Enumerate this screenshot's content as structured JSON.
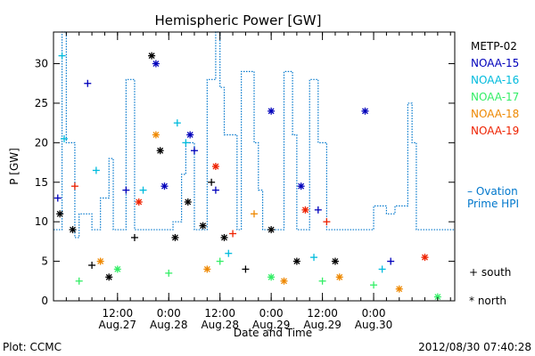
{
  "chart_data": {
    "type": "scatter",
    "title": "Hemispheric Power [GW]",
    "xlabel": "Date and Time",
    "ylabel": "P [GW]",
    "x_range": [
      "2012-08-26T21:00",
      "2012-08-30T19:00"
    ],
    "ylim": [
      0,
      34
    ],
    "y_ticks": [
      0,
      5,
      10,
      15,
      20,
      25,
      30
    ],
    "x_ticks": [
      {
        "t": "2012-08-27T12:00",
        "time": "12:00",
        "date": "Aug.27"
      },
      {
        "t": "2012-08-28T00:00",
        "time": "0:00",
        "date": "Aug.28"
      },
      {
        "t": "2012-08-28T12:00",
        "time": "12:00",
        "date": "Aug.28"
      },
      {
        "t": "2012-08-29T00:00",
        "time": "0:00",
        "date": "Aug.29"
      },
      {
        "t": "2012-08-29T12:00",
        "time": "12:00",
        "date": "Aug.29"
      },
      {
        "t": "2012-08-30T00:00",
        "time": "0:00",
        "date": "Aug.30"
      }
    ],
    "series": [
      {
        "name": "METP-02",
        "color": "#000000",
        "points": [
          {
            "t": "2012-08-26T22:30",
            "y": 11,
            "m": "north"
          },
          {
            "t": "2012-08-27T01:30",
            "y": 9,
            "m": "north"
          },
          {
            "t": "2012-08-27T06:00",
            "y": 4.5,
            "m": "south"
          },
          {
            "t": "2012-08-27T10:00",
            "y": 3,
            "m": "north"
          },
          {
            "t": "2012-08-27T16:00",
            "y": 8,
            "m": "south"
          },
          {
            "t": "2012-08-27T20:00",
            "y": 31,
            "m": "north"
          },
          {
            "t": "2012-08-27T22:00",
            "y": 19,
            "m": "north"
          },
          {
            "t": "2012-08-28T01:30",
            "y": 8,
            "m": "north"
          },
          {
            "t": "2012-08-28T04:30",
            "y": 12.5,
            "m": "north"
          },
          {
            "t": "2012-08-28T08:00",
            "y": 9.5,
            "m": "north"
          },
          {
            "t": "2012-08-28T10:00",
            "y": 15,
            "m": "south"
          },
          {
            "t": "2012-08-28T13:00",
            "y": 8,
            "m": "north"
          },
          {
            "t": "2012-08-28T18:00",
            "y": 4,
            "m": "south"
          },
          {
            "t": "2012-08-29T00:00",
            "y": 9,
            "m": "north"
          },
          {
            "t": "2012-08-29T06:00",
            "y": 5,
            "m": "north"
          },
          {
            "t": "2012-08-29T15:00",
            "y": 5,
            "m": "north"
          }
        ]
      },
      {
        "name": "NOAA-15",
        "color": "#0000bb",
        "points": [
          {
            "t": "2012-08-26T22:00",
            "y": 13,
            "m": "south"
          },
          {
            "t": "2012-08-27T05:00",
            "y": 27.5,
            "m": "south"
          },
          {
            "t": "2012-08-27T14:00",
            "y": 14,
            "m": "south"
          },
          {
            "t": "2012-08-27T21:00",
            "y": 30,
            "m": "north"
          },
          {
            "t": "2012-08-27T23:00",
            "y": 14.5,
            "m": "north"
          },
          {
            "t": "2012-08-28T05:00",
            "y": 21,
            "m": "north"
          },
          {
            "t": "2012-08-28T06:00",
            "y": 19,
            "m": "south"
          },
          {
            "t": "2012-08-28T11:00",
            "y": 14,
            "m": "south"
          },
          {
            "t": "2012-08-29T00:00",
            "y": 24,
            "m": "north"
          },
          {
            "t": "2012-08-29T07:00",
            "y": 14.5,
            "m": "north"
          },
          {
            "t": "2012-08-29T11:00",
            "y": 11.5,
            "m": "south"
          },
          {
            "t": "2012-08-29T22:00",
            "y": 24,
            "m": "north"
          },
          {
            "t": "2012-08-30T04:00",
            "y": 5,
            "m": "south"
          }
        ]
      },
      {
        "name": "NOAA-16",
        "color": "#00bbdd",
        "points": [
          {
            "t": "2012-08-26T23:00",
            "y": 31,
            "m": "south"
          },
          {
            "t": "2012-08-26T23:30",
            "y": 20.5,
            "m": "south"
          },
          {
            "t": "2012-08-27T07:00",
            "y": 16.5,
            "m": "south"
          },
          {
            "t": "2012-08-27T18:00",
            "y": 14,
            "m": "south"
          },
          {
            "t": "2012-08-28T02:00",
            "y": 22.5,
            "m": "south"
          },
          {
            "t": "2012-08-28T04:00",
            "y": 20,
            "m": "south"
          },
          {
            "t": "2012-08-28T14:00",
            "y": 6,
            "m": "south"
          },
          {
            "t": "2012-08-29T10:00",
            "y": 5.5,
            "m": "south"
          },
          {
            "t": "2012-08-30T02:00",
            "y": 4,
            "m": "south"
          }
        ]
      },
      {
        "name": "NOAA-17",
        "color": "#33ee66",
        "points": [
          {
            "t": "2012-08-27T03:00",
            "y": 2.5,
            "m": "south"
          },
          {
            "t": "2012-08-27T12:00",
            "y": 4,
            "m": "north"
          },
          {
            "t": "2012-08-28T00:00",
            "y": 3.5,
            "m": "south"
          },
          {
            "t": "2012-08-28T12:00",
            "y": 5,
            "m": "south"
          },
          {
            "t": "2012-08-29T00:00",
            "y": 3,
            "m": "north"
          },
          {
            "t": "2012-08-29T12:00",
            "y": 2.5,
            "m": "south"
          },
          {
            "t": "2012-08-30T00:00",
            "y": 2,
            "m": "south"
          },
          {
            "t": "2012-08-30T15:00",
            "y": 0.5,
            "m": "north"
          }
        ]
      },
      {
        "name": "NOAA-18",
        "color": "#ee8800",
        "points": [
          {
            "t": "2012-08-27T21:00",
            "y": 21,
            "m": "north"
          },
          {
            "t": "2012-08-28T20:00",
            "y": 11,
            "m": "south"
          },
          {
            "t": "2012-08-27T08:00",
            "y": 5,
            "m": "north"
          },
          {
            "t": "2012-08-28T09:00",
            "y": 4,
            "m": "north"
          },
          {
            "t": "2012-08-29T03:00",
            "y": 2.5,
            "m": "north"
          },
          {
            "t": "2012-08-29T16:00",
            "y": 3,
            "m": "north"
          },
          {
            "t": "2012-08-30T06:00",
            "y": 1.5,
            "m": "north"
          }
        ]
      },
      {
        "name": "NOAA-19",
        "color": "#ee2200",
        "points": [
          {
            "t": "2012-08-27T02:00",
            "y": 14.5,
            "m": "south"
          },
          {
            "t": "2012-08-27T17:00",
            "y": 12.5,
            "m": "north"
          },
          {
            "t": "2012-08-28T11:00",
            "y": 17,
            "m": "north"
          },
          {
            "t": "2012-08-28T15:00",
            "y": 8.5,
            "m": "south"
          },
          {
            "t": "2012-08-29T08:00",
            "y": 11.5,
            "m": "north"
          },
          {
            "t": "2012-08-29T13:00",
            "y": 10,
            "m": "south"
          },
          {
            "t": "2012-08-30T12:00",
            "y": 5.5,
            "m": "north"
          }
        ]
      }
    ],
    "ovation": {
      "name": "– Ovation Prime HPI",
      "color": "#0077cc",
      "steps": [
        {
          "t": "2012-08-26T21:00",
          "y": 9
        },
        {
          "t": "2012-08-26T23:00",
          "y": 34
        },
        {
          "t": "2012-08-27T00:00",
          "y": 20
        },
        {
          "t": "2012-08-27T02:00",
          "y": 8
        },
        {
          "t": "2012-08-27T03:00",
          "y": 11
        },
        {
          "t": "2012-08-27T06:00",
          "y": 9
        },
        {
          "t": "2012-08-27T08:00",
          "y": 13
        },
        {
          "t": "2012-08-27T10:00",
          "y": 18
        },
        {
          "t": "2012-08-27T11:00",
          "y": 9
        },
        {
          "t": "2012-08-27T14:00",
          "y": 28
        },
        {
          "t": "2012-08-27T16:00",
          "y": 9
        },
        {
          "t": "2012-08-27T22:00",
          "y": 9
        },
        {
          "t": "2012-08-28T01:00",
          "y": 10
        },
        {
          "t": "2012-08-28T03:00",
          "y": 16
        },
        {
          "t": "2012-08-28T04:00",
          "y": 20
        },
        {
          "t": "2012-08-28T06:00",
          "y": 9
        },
        {
          "t": "2012-08-28T09:00",
          "y": 28
        },
        {
          "t": "2012-08-28T11:00",
          "y": 34
        },
        {
          "t": "2012-08-28T12:00",
          "y": 27
        },
        {
          "t": "2012-08-28T13:00",
          "y": 21
        },
        {
          "t": "2012-08-28T16:00",
          "y": 9
        },
        {
          "t": "2012-08-28T17:00",
          "y": 29
        },
        {
          "t": "2012-08-28T20:00",
          "y": 20
        },
        {
          "t": "2012-08-28T21:00",
          "y": 14
        },
        {
          "t": "2012-08-28T22:00",
          "y": 9
        },
        {
          "t": "2012-08-29T03:00",
          "y": 29
        },
        {
          "t": "2012-08-29T05:00",
          "y": 21
        },
        {
          "t": "2012-08-29T06:00",
          "y": 9
        },
        {
          "t": "2012-08-29T09:00",
          "y": 28
        },
        {
          "t": "2012-08-29T11:00",
          "y": 20
        },
        {
          "t": "2012-08-29T13:00",
          "y": 9
        },
        {
          "t": "2012-08-30T00:00",
          "y": 12
        },
        {
          "t": "2012-08-30T03:00",
          "y": 11
        },
        {
          "t": "2012-08-30T05:00",
          "y": 12
        },
        {
          "t": "2012-08-30T08:00",
          "y": 25
        },
        {
          "t": "2012-08-30T09:00",
          "y": 20
        },
        {
          "t": "2012-08-30T10:00",
          "y": 9
        }
      ]
    },
    "marker_legend": [
      {
        "symbol": "+",
        "label": "south"
      },
      {
        "symbol": "*",
        "label": "north"
      }
    ],
    "grid": false,
    "legend_position": "right"
  },
  "footer": {
    "left": "Plot: CCMC",
    "right": "2012/08/30 07:40:28"
  }
}
